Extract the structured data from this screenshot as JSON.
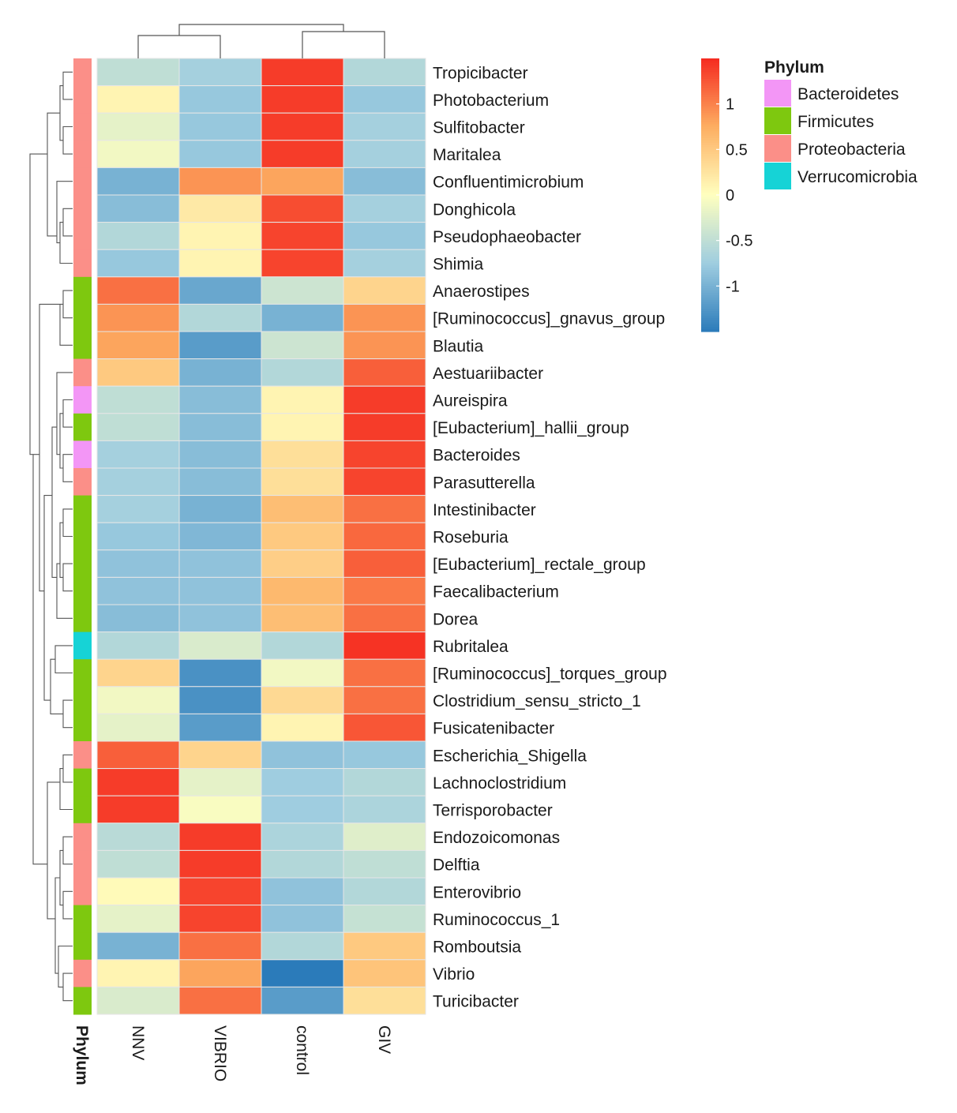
{
  "chart_data": {
    "type": "heatmap",
    "title": "",
    "columns": [
      "NNV",
      "VIBRIO",
      "control",
      "GIV"
    ],
    "rows": [
      {
        "genus": "Tropicibacter",
        "phylum": "Proteobacteria",
        "values": [
          -0.5,
          -0.7,
          1.4,
          -0.6
        ]
      },
      {
        "genus": "Photobacterium",
        "phylum": "Proteobacteria",
        "values": [
          0.1,
          -0.8,
          1.4,
          -0.8
        ]
      },
      {
        "genus": "Sulfitobacter",
        "phylum": "Proteobacteria",
        "values": [
          -0.2,
          -0.8,
          1.4,
          -0.7
        ]
      },
      {
        "genus": "Maritalea",
        "phylum": "Proteobacteria",
        "values": [
          -0.1,
          -0.8,
          1.4,
          -0.7
        ]
      },
      {
        "genus": "Confluentimicrobium",
        "phylum": "Proteobacteria",
        "values": [
          -1.0,
          0.9,
          0.8,
          -0.9
        ]
      },
      {
        "genus": "Donghicola",
        "phylum": "Proteobacteria",
        "values": [
          -0.9,
          0.2,
          1.3,
          -0.7
        ]
      },
      {
        "genus": "Pseudophaeobacter",
        "phylum": "Proteobacteria",
        "values": [
          -0.6,
          0.1,
          1.35,
          -0.8
        ]
      },
      {
        "genus": "Shimia",
        "phylum": "Proteobacteria",
        "values": [
          -0.8,
          0.1,
          1.35,
          -0.7
        ]
      },
      {
        "genus": "Anaerostipes",
        "phylum": "Firmicutes",
        "values": [
          1.1,
          -1.1,
          -0.4,
          0.4
        ]
      },
      {
        "genus": "[Ruminococcus]_gnavus_group",
        "phylum": "Firmicutes",
        "values": [
          0.9,
          -0.6,
          -1.0,
          0.9
        ]
      },
      {
        "genus": "Blautia",
        "phylum": "Firmicutes",
        "values": [
          0.8,
          -1.2,
          -0.4,
          0.9
        ]
      },
      {
        "genus": "Aestuariibacter",
        "phylum": "Proteobacteria",
        "values": [
          0.5,
          -1.0,
          -0.6,
          1.2
        ]
      },
      {
        "genus": "Aureispira",
        "phylum": "Bacteroidetes",
        "values": [
          -0.5,
          -0.9,
          0.1,
          1.4
        ]
      },
      {
        "genus": "[Eubacterium]_hallii_group",
        "phylum": "Firmicutes",
        "values": [
          -0.5,
          -0.9,
          0.1,
          1.4
        ]
      },
      {
        "genus": "Bacteroides",
        "phylum": "Bacteroidetes",
        "values": [
          -0.7,
          -0.9,
          0.3,
          1.35
        ]
      },
      {
        "genus": "Parasutterella",
        "phylum": "Proteobacteria",
        "values": [
          -0.7,
          -0.9,
          0.3,
          1.35
        ]
      },
      {
        "genus": "Intestinibacter",
        "phylum": "Firmicutes",
        "values": [
          -0.7,
          -1.0,
          0.6,
          1.1
        ]
      },
      {
        "genus": "Roseburia",
        "phylum": "Firmicutes",
        "values": [
          -0.8,
          -0.95,
          0.5,
          1.15
        ]
      },
      {
        "genus": "[Eubacterium]_rectale_group",
        "phylum": "Firmicutes",
        "values": [
          -0.85,
          -0.85,
          0.45,
          1.2
        ]
      },
      {
        "genus": "Faecalibacterium",
        "phylum": "Firmicutes",
        "values": [
          -0.85,
          -0.85,
          0.65,
          1.05
        ]
      },
      {
        "genus": "Dorea",
        "phylum": "Firmicutes",
        "values": [
          -0.9,
          -0.85,
          0.6,
          1.1
        ]
      },
      {
        "genus": "Rubritalea",
        "phylum": "Verrucomicrobia",
        "values": [
          -0.6,
          -0.3,
          -0.6,
          1.45
        ]
      },
      {
        "genus": "[Ruminococcus]_torques_group",
        "phylum": "Firmicutes",
        "values": [
          0.4,
          -1.3,
          -0.1,
          1.1
        ]
      },
      {
        "genus": "Clostridium_sensu_stricto_1",
        "phylum": "Firmicutes",
        "values": [
          -0.1,
          -1.3,
          0.35,
          1.1
        ]
      },
      {
        "genus": "Fusicatenibacter",
        "phylum": "Firmicutes",
        "values": [
          -0.2,
          -1.2,
          0.1,
          1.25
        ]
      },
      {
        "genus": "Escherichia_Shigella",
        "phylum": "Proteobacteria",
        "values": [
          1.2,
          0.4,
          -0.85,
          -0.8
        ]
      },
      {
        "genus": "Lachnoclostridium",
        "phylum": "Firmicutes",
        "values": [
          1.4,
          -0.2,
          -0.75,
          -0.6
        ]
      },
      {
        "genus": "Terrisporobacter",
        "phylum": "Firmicutes",
        "values": [
          1.4,
          -0.05,
          -0.75,
          -0.65
        ]
      },
      {
        "genus": "Endozoicomonas",
        "phylum": "Proteobacteria",
        "values": [
          -0.55,
          1.4,
          -0.65,
          -0.25
        ]
      },
      {
        "genus": "Delftia",
        "phylum": "Proteobacteria",
        "values": [
          -0.5,
          1.4,
          -0.6,
          -0.5
        ]
      },
      {
        "genus": "Enterovibrio",
        "phylum": "Proteobacteria",
        "values": [
          0.05,
          1.35,
          -0.85,
          -0.6
        ]
      },
      {
        "genus": "Ruminococcus_1",
        "phylum": "Firmicutes",
        "values": [
          -0.2,
          1.35,
          -0.85,
          -0.45
        ]
      },
      {
        "genus": "Romboutsia",
        "phylum": "Firmicutes",
        "values": [
          -1.0,
          1.1,
          -0.6,
          0.5
        ]
      },
      {
        "genus": "Vibrio",
        "phylum": "Proteobacteria",
        "values": [
          0.1,
          0.8,
          -1.5,
          0.55
        ]
      },
      {
        "genus": "Turicibacter",
        "phylum": "Firmicutes",
        "values": [
          -0.3,
          1.1,
          -1.2,
          0.3
        ]
      }
    ],
    "phylum_axis_label": "Phylum",
    "scale": {
      "min": -1.5,
      "max": 1.5,
      "ticks": [
        1,
        0.5,
        0,
        -0.5,
        -1
      ],
      "tick_labels": [
        "1",
        "0.5",
        "0",
        "-0.5",
        "-1"
      ],
      "colors": [
        "#2b7bba",
        "#9fcde0",
        "#ffffbf",
        "#fdae61",
        "#f52a20"
      ]
    },
    "legend": {
      "title": "Phylum",
      "placement": "top-right",
      "entries": [
        {
          "name": "Bacteroidetes",
          "color": "#f396f6"
        },
        {
          "name": "Firmicutes",
          "color": "#7ec80f"
        },
        {
          "name": "Proteobacteria",
          "color": "#fb8f88"
        },
        {
          "name": "Verrucomicrobia",
          "color": "#16d3d6"
        }
      ]
    },
    "column_dendrogram": "((NNV,VIBRIO),(control,GIV))",
    "row_dendrogram": "shown on left"
  }
}
